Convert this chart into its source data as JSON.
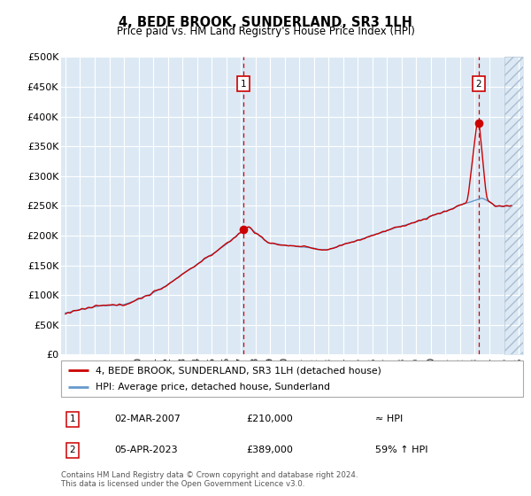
{
  "title": "4, BEDE BROOK, SUNDERLAND, SR3 1LH",
  "subtitle": "Price paid vs. HM Land Registry's House Price Index (HPI)",
  "legend_line1": "4, BEDE BROOK, SUNDERLAND, SR3 1LH (detached house)",
  "legend_line2": "HPI: Average price, detached house, Sunderland",
  "annotation1_date": "02-MAR-2007",
  "annotation1_price": "£210,000",
  "annotation1_hpi": "≈ HPI",
  "annotation2_date": "05-APR-2023",
  "annotation2_price": "£389,000",
  "annotation2_hpi": "59% ↑ HPI",
  "footer": "Contains HM Land Registry data © Crown copyright and database right 2024.\nThis data is licensed under the Open Government Licence v3.0.",
  "line_color": "#cc0000",
  "hpi_color": "#6699cc",
  "bg_color": "#dce9f5",
  "grid_color": "#ffffff",
  "ylim": [
    0,
    500000
  ],
  "yticks": [
    0,
    50000,
    100000,
    150000,
    200000,
    250000,
    300000,
    350000,
    400000,
    450000,
    500000
  ],
  "sale1_x": 2007.17,
  "sale1_y": 210000,
  "sale2_x": 2023.26,
  "sale2_y": 389000,
  "hatch_start": 2025.0,
  "xlim_start": 1994.7,
  "xlim_end": 2026.3
}
